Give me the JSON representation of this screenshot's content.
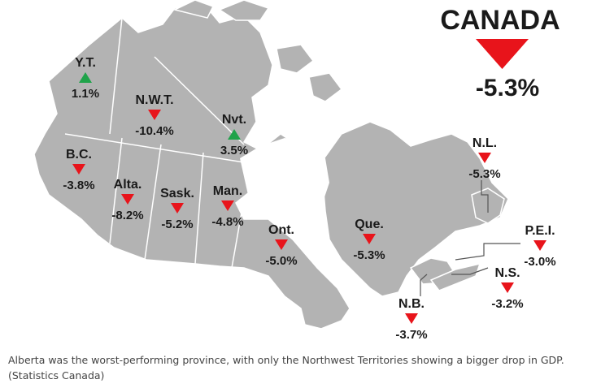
{
  "map": {
    "national": {
      "label": "CANADA",
      "value": "-5.3%",
      "direction": "down"
    },
    "regions": [
      {
        "id": "yt",
        "abbr": "Y.T.",
        "value": "1.1%",
        "direction": "up"
      },
      {
        "id": "nwt",
        "abbr": "N.W.T.",
        "value": "-10.4%",
        "direction": "down"
      },
      {
        "id": "nvt",
        "abbr": "Nvt.",
        "value": "3.5%",
        "direction": "up"
      },
      {
        "id": "bc",
        "abbr": "B.C.",
        "value": "-3.8%",
        "direction": "down"
      },
      {
        "id": "alta",
        "abbr": "Alta.",
        "value": "-8.2%",
        "direction": "down"
      },
      {
        "id": "sask",
        "abbr": "Sask.",
        "value": "-5.2%",
        "direction": "down"
      },
      {
        "id": "man",
        "abbr": "Man.",
        "value": "-4.8%",
        "direction": "down"
      },
      {
        "id": "ont",
        "abbr": "Ont.",
        "value": "-5.0%",
        "direction": "down"
      },
      {
        "id": "que",
        "abbr": "Que.",
        "value": "-5.3%",
        "direction": "down"
      },
      {
        "id": "nl",
        "abbr": "N.L.",
        "value": "-5.3%",
        "direction": "down"
      },
      {
        "id": "pei",
        "abbr": "P.E.I.",
        "value": "-3.0%",
        "direction": "down"
      },
      {
        "id": "ns",
        "abbr": "N.S.",
        "value": "-3.2%",
        "direction": "down"
      },
      {
        "id": "nb",
        "abbr": "N.B.",
        "value": "-3.7%",
        "direction": "down"
      }
    ],
    "colors": {
      "up": "#1fa34a",
      "down": "#e8141b",
      "land": "#b3b3b3",
      "border": "#ffffff"
    }
  },
  "caption": {
    "text": "Alberta was the worst-performing province, with only the Northwest Territories showing a bigger drop in GDP.",
    "credit": "(Statistics Canada)"
  }
}
